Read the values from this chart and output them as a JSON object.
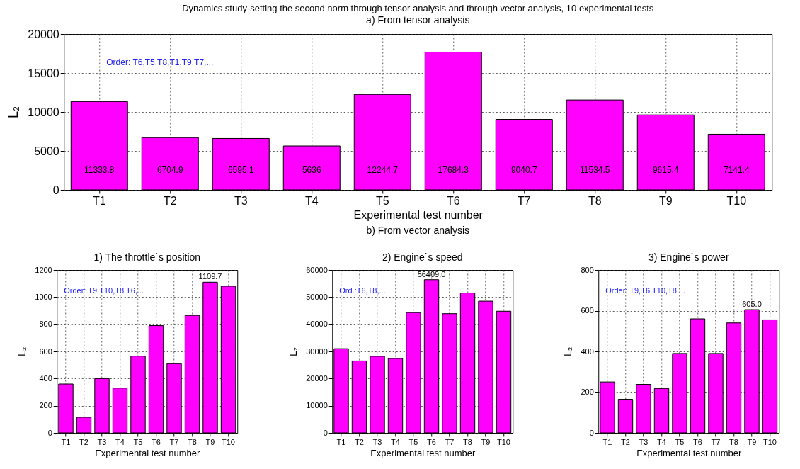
{
  "chart_data": [
    {
      "type": "bar",
      "title": "Dynamics study-setting the second norm through tensor analysis and through vector analysis, 10 experimental tests",
      "subtitle": "a) From tensor analysis",
      "xlabel": "Experimental test number",
      "ylabel": "L₂",
      "categories": [
        "T1",
        "T2",
        "T3",
        "T4",
        "T5",
        "T6",
        "T7",
        "T8",
        "T9",
        "T10"
      ],
      "values": [
        11333.8,
        6704.9,
        6595.1,
        5636,
        12244.7,
        17684.3,
        9040.7,
        11534.5,
        9615.4,
        7141.4
      ],
      "color": "#ff00ff",
      "data_labels": true,
      "ylim": [
        0,
        20000
      ],
      "yticks": [
        0,
        5000,
        10000,
        15000,
        20000
      ],
      "grid": true,
      "annotations": [
        "Order: T6,T5,T8,T1,T9,T7,...",
        "b) From vector analysis"
      ]
    },
    {
      "type": "bar",
      "title": "1) The throttle`s position",
      "xlabel": "Experimental test number",
      "ylabel": "L₂",
      "categories": [
        "T1",
        "T2",
        "T3",
        "T4",
        "T5",
        "T6",
        "T7",
        "T8",
        "T9",
        "T10"
      ],
      "values": [
        360,
        115,
        400,
        330,
        565,
        790,
        510,
        865,
        1109.7,
        1080
      ],
      "value_labels": [
        null,
        null,
        null,
        null,
        null,
        null,
        null,
        null,
        "1109.7",
        null
      ],
      "color": "#ff00ff",
      "ylim": [
        0,
        1200
      ],
      "yticks": [
        0,
        200,
        400,
        600,
        800,
        1000,
        1200
      ],
      "grid": true,
      "annotations": [
        "Order: T9,T10,T8,T6,..."
      ]
    },
    {
      "type": "bar",
      "title": "2) Engine`s speed",
      "xlabel": "Experimental test number",
      "ylabel": "L₂",
      "categories": [
        "T1",
        "T2",
        "T3",
        "T4",
        "T5",
        "T6",
        "T7",
        "T8",
        "T9",
        "T10"
      ],
      "values": [
        31000,
        26500,
        28200,
        27400,
        44300,
        56409.0,
        43900,
        51500,
        48500,
        44800
      ],
      "value_labels": [
        null,
        null,
        null,
        null,
        null,
        "56409.0",
        null,
        null,
        null,
        null
      ],
      "color": "#ff00ff",
      "ylim": [
        0,
        60000
      ],
      "yticks": [
        0,
        10000,
        20000,
        30000,
        40000,
        50000,
        60000
      ],
      "grid": true,
      "annotations": [
        "Ord.:T6,T8,..."
      ]
    },
    {
      "type": "bar",
      "title": "3) Engine`s power",
      "xlabel": "Experimental test number",
      "ylabel": "L₂",
      "categories": [
        "T1",
        "T2",
        "T3",
        "T4",
        "T5",
        "T6",
        "T7",
        "T8",
        "T9",
        "T10"
      ],
      "values": [
        250,
        165,
        238,
        218,
        390,
        560,
        390,
        540,
        605.0,
        555
      ],
      "value_labels": [
        null,
        null,
        null,
        null,
        null,
        null,
        null,
        null,
        "605.0",
        null
      ],
      "color": "#ff00ff",
      "ylim": [
        0,
        800
      ],
      "yticks": [
        0,
        200,
        400,
        600,
        800
      ],
      "grid": true,
      "annotations": [
        "Order: T9,T6,T10,T8,..."
      ]
    }
  ]
}
